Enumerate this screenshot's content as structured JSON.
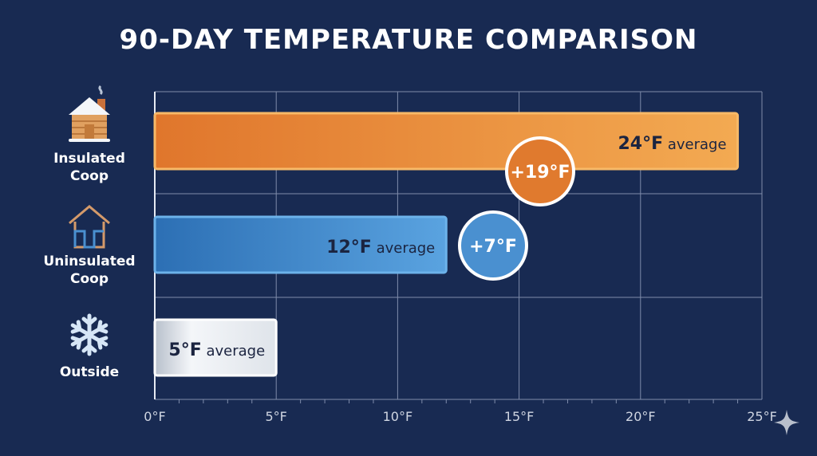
{
  "chart_data": {
    "type": "bar",
    "orientation": "horizontal",
    "title": "90-DAY TEMPERATURE COMPARISON",
    "categories": [
      "Insulated Coop",
      "Uninsulated Coop",
      "Outside"
    ],
    "category_lines": [
      [
        "Insulated",
        "Coop"
      ],
      [
        "Uninsulated",
        "Coop"
      ],
      [
        "Outside"
      ]
    ],
    "category_icons": [
      "snowy-cabin-icon",
      "house-outline-icon",
      "snowflake-icon"
    ],
    "values": [
      24,
      12,
      5
    ],
    "unit": "°F",
    "data_labels": [
      {
        "value": "24°F",
        "suffix": "average"
      },
      {
        "value": "12°F",
        "suffix": "average"
      },
      {
        "value": "5°F",
        "suffix": "average"
      }
    ],
    "difference_badges": [
      {
        "category": "Insulated Coop",
        "label": "+19°F",
        "color": "#e07a2e"
      },
      {
        "category": "Uninsulated Coop",
        "label": "+7°F",
        "color": "#4a90d0"
      }
    ],
    "xlim": [
      0,
      25
    ],
    "x_ticks": [
      0,
      5,
      10,
      15,
      20,
      25
    ],
    "x_tick_labels": [
      "0°F",
      "5°F",
      "10°F",
      "15°F",
      "20°F",
      "25°F"
    ],
    "grid": true,
    "colors": {
      "background": "#182a52",
      "insulated": "#f0a24e",
      "uninsulated": "#4a90d0",
      "outside": "#eef1f5",
      "text_dark": "#1b2440"
    }
  }
}
